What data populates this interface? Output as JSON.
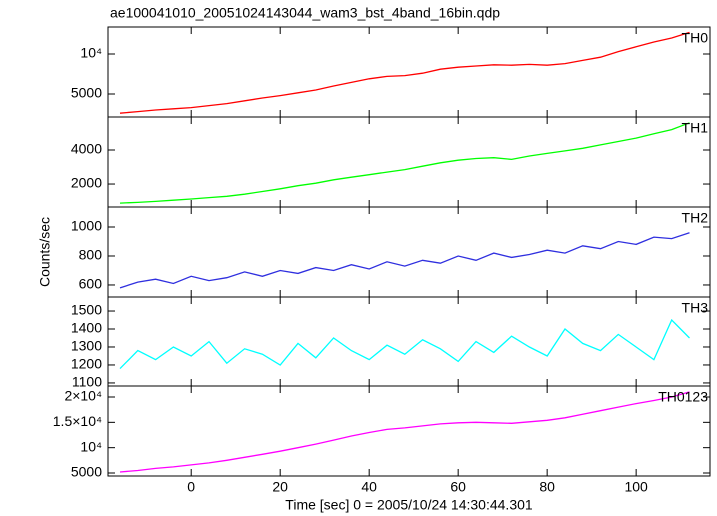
{
  "chart_data": [
    {
      "type": "line",
      "title": "ae100041010_20051024143044_wam3_bst_4band_16bin.qdp",
      "x": [
        -16,
        -12,
        -8,
        -4,
        0,
        4,
        8,
        12,
        16,
        20,
        24,
        28,
        32,
        36,
        40,
        44,
        48,
        52,
        56,
        60,
        64,
        68,
        72,
        76,
        80,
        84,
        88,
        92,
        96,
        100,
        104,
        108,
        112
      ],
      "series": [
        {
          "name": "TH0",
          "color": "#ff0000",
          "values": [
            2600,
            2800,
            3000,
            3150,
            3300,
            3550,
            3800,
            4150,
            4500,
            4800,
            5150,
            5500,
            6000,
            6450,
            6900,
            7200,
            7300,
            7600,
            8100,
            8350,
            8500,
            8650,
            8600,
            8700,
            8600,
            8800,
            9200,
            9600,
            10300,
            10900,
            11500,
            12000,
            12700
          ]
        }
      ],
      "xlim": [
        -18.7,
        116.6
      ],
      "ylim": [
        2125,
        13375
      ],
      "yticks": [
        5000,
        {
          "value": 10000,
          "label": "10⁴"
        }
      ]
    },
    {
      "type": "line",
      "x": [
        -16,
        -12,
        -8,
        -4,
        0,
        4,
        8,
        12,
        16,
        20,
        24,
        28,
        32,
        36,
        40,
        44,
        48,
        52,
        56,
        60,
        64,
        68,
        72,
        76,
        80,
        84,
        88,
        92,
        96,
        100,
        104,
        108,
        112
      ],
      "series": [
        {
          "name": "TH1",
          "color": "#00ff00",
          "values": [
            880,
            920,
            980,
            1050,
            1120,
            1200,
            1280,
            1400,
            1560,
            1720,
            1900,
            2050,
            2250,
            2400,
            2550,
            2700,
            2850,
            3050,
            3250,
            3400,
            3500,
            3550,
            3450,
            3650,
            3800,
            3950,
            4100,
            4300,
            4500,
            4700,
            4950,
            5200,
            5600
          ]
        }
      ],
      "xlim": [
        -18.7,
        116.6
      ],
      "ylim": [
        650,
        5940
      ],
      "yticks": [
        2000,
        4000
      ]
    },
    {
      "type": "line",
      "ylabel": "Counts/sec",
      "x": [
        -16,
        -12,
        -8,
        -4,
        0,
        4,
        8,
        12,
        16,
        20,
        24,
        28,
        32,
        36,
        40,
        44,
        48,
        52,
        56,
        60,
        64,
        68,
        72,
        76,
        80,
        84,
        88,
        92,
        96,
        100,
        104,
        108,
        112
      ],
      "series": [
        {
          "name": "TH2",
          "color": "#2f2fdf",
          "values": [
            580,
            620,
            640,
            610,
            660,
            630,
            650,
            690,
            660,
            700,
            680,
            720,
            700,
            740,
            710,
            760,
            730,
            770,
            750,
            800,
            770,
            820,
            790,
            810,
            840,
            820,
            870,
            850,
            900,
            880,
            930,
            920,
            960
          ]
        }
      ],
      "xlim": [
        -18.7,
        116.6
      ],
      "ylim": [
        517,
        1138
      ],
      "yticks": [
        600,
        800,
        1000
      ]
    },
    {
      "type": "line",
      "x": [
        -16,
        -12,
        -8,
        -4,
        0,
        4,
        8,
        12,
        16,
        20,
        24,
        28,
        32,
        36,
        40,
        44,
        48,
        52,
        56,
        60,
        64,
        68,
        72,
        76,
        80,
        84,
        88,
        92,
        96,
        100,
        104,
        108,
        112
      ],
      "series": [
        {
          "name": "TH3",
          "color": "#00ffff",
          "values": [
            1180,
            1280,
            1230,
            1300,
            1250,
            1330,
            1210,
            1290,
            1260,
            1200,
            1320,
            1240,
            1350,
            1280,
            1230,
            1310,
            1260,
            1340,
            1290,
            1220,
            1330,
            1270,
            1360,
            1300,
            1250,
            1400,
            1320,
            1280,
            1370,
            1300,
            1230,
            1450,
            1350
          ]
        }
      ],
      "xlim": [
        -18.7,
        116.6
      ],
      "ylim": [
        1083,
        1578
      ],
      "yticks": [
        1100,
        1200,
        1300,
        1400,
        1500
      ]
    },
    {
      "type": "line",
      "xlabel": "Time [sec] 0 = 2005/10/24 14:30:44.301",
      "x": [
        -16,
        -12,
        -8,
        -4,
        0,
        4,
        8,
        12,
        16,
        20,
        24,
        28,
        32,
        36,
        40,
        44,
        48,
        52,
        56,
        60,
        64,
        68,
        72,
        76,
        80,
        84,
        88,
        92,
        96,
        100,
        104,
        108,
        112
      ],
      "series": [
        {
          "name": "TH0123",
          "color": "#ff00ff",
          "values": [
            5200,
            5500,
            5900,
            6200,
            6600,
            7000,
            7500,
            8100,
            8700,
            9300,
            10000,
            10700,
            11500,
            12300,
            13000,
            13600,
            13900,
            14300,
            14700,
            14900,
            15000,
            14900,
            14800,
            15100,
            15400,
            15900,
            16600,
            17300,
            18000,
            18700,
            19300,
            20000,
            21000
          ]
        }
      ],
      "xlim": [
        -18.7,
        116.6
      ],
      "xticks": [
        0,
        20,
        40,
        60,
        80,
        100
      ],
      "ylim": [
        4410,
        22170
      ],
      "yticks": [
        5000,
        {
          "value": 10000,
          "label": "10⁴"
        },
        {
          "value": 15000,
          "label": "1.5×10⁴"
        },
        {
          "value": 20000,
          "label": "2×10⁴"
        }
      ]
    }
  ]
}
